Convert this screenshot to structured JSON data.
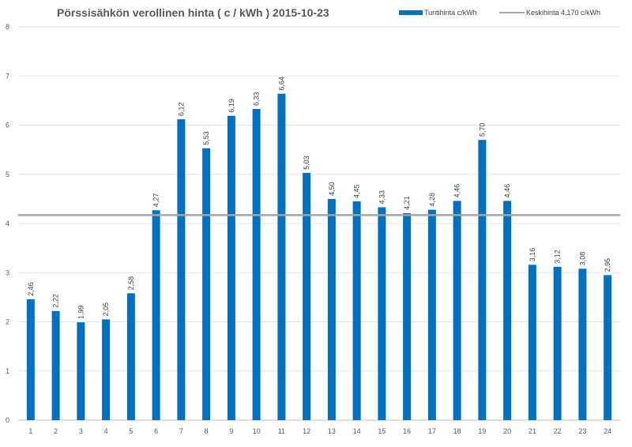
{
  "chart_data": {
    "type": "bar",
    "title": "Pörssisähkön verollinen hinta ( c / kWh ) 2015-10-23",
    "xlabel": "",
    "ylabel": "",
    "ylim": [
      0,
      8
    ],
    "yticks": [
      "0",
      "1",
      "2",
      "3",
      "4",
      "5",
      "6",
      "7",
      "8"
    ],
    "grid": true,
    "legend_position": "top-right",
    "categories": [
      "1",
      "2",
      "3",
      "4",
      "5",
      "6",
      "7",
      "8",
      "9",
      "10",
      "11",
      "12",
      "13",
      "14",
      "15",
      "16",
      "17",
      "18",
      "19",
      "20",
      "21",
      "22",
      "23",
      "24"
    ],
    "series": [
      {
        "name": "Tuntihinta c/kWh",
        "type": "bar",
        "color": "#0070C0",
        "values": [
          2.46,
          2.22,
          1.99,
          2.05,
          2.58,
          4.27,
          6.12,
          5.53,
          6.19,
          6.33,
          6.64,
          5.03,
          4.5,
          4.45,
          4.33,
          4.21,
          4.28,
          4.46,
          5.7,
          4.46,
          3.16,
          3.12,
          3.08,
          2.95
        ],
        "labels": [
          "2,46",
          "2,22",
          "1,99",
          "2,05",
          "2,58",
          "4,27",
          "6,12",
          "5,53",
          "6,19",
          "6,33",
          "6,64",
          "5,03",
          "4,50",
          "4,45",
          "4,33",
          "4,21",
          "4,28",
          "4,46",
          "5,70",
          "4,46",
          "3,16",
          "3,12",
          "3,08",
          "2,95"
        ]
      },
      {
        "name": "Keskihinta 4,170 c/kWh",
        "type": "line",
        "color": "#A5A5A5",
        "value": 4.17
      }
    ]
  }
}
